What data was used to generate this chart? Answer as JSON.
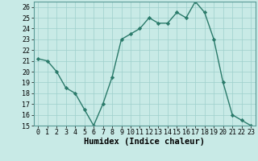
{
  "x": [
    0,
    1,
    2,
    3,
    4,
    5,
    6,
    7,
    8,
    9,
    10,
    11,
    12,
    13,
    14,
    15,
    16,
    17,
    18,
    19,
    20,
    21,
    22,
    23
  ],
  "y": [
    21.2,
    21.0,
    20.0,
    18.5,
    18.0,
    16.5,
    15.0,
    17.0,
    19.5,
    23.0,
    23.5,
    24.0,
    25.0,
    24.5,
    24.5,
    25.5,
    25.0,
    26.5,
    25.5,
    23.0,
    19.0,
    16.0,
    15.5,
    15.0
  ],
  "xlabel": "Humidex (Indice chaleur)",
  "xlim": [
    -0.5,
    23.5
  ],
  "ylim": [
    15,
    26.5
  ],
  "yticks": [
    15,
    16,
    17,
    18,
    19,
    20,
    21,
    22,
    23,
    24,
    25,
    26
  ],
  "xtick_labels": [
    "0",
    "1",
    "2",
    "3",
    "4",
    "5",
    "6",
    "7",
    "8",
    "9",
    "10",
    "11",
    "12",
    "13",
    "14",
    "15",
    "16",
    "17",
    "18",
    "19",
    "20",
    "21",
    "22",
    "23"
  ],
  "line_color": "#2a7a6a",
  "marker_color": "#2a7a6a",
  "bg_color": "#c8eae6",
  "grid_color": "#9ecfcc",
  "xlabel_fontsize": 7.5,
  "tick_fontsize": 6.0
}
